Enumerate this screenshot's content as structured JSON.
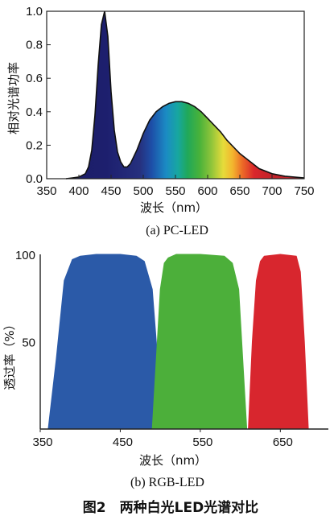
{
  "figure_caption": "图2　两种白光LED光谱对比",
  "colors": {
    "blue_band": "#2b5aa8",
    "green_band": "#4caf3a",
    "red_band": "#d8262e",
    "pc_blue_peak": "#1d1f6e"
  },
  "chart_data": [
    {
      "type": "area",
      "subtitle": "(a) PC-LED",
      "xlabel": "波长（nm）",
      "ylabel": "相对光谱功率",
      "xlim": [
        350,
        750
      ],
      "ylim": [
        0,
        1.0
      ],
      "x_ticks": [
        "350",
        "400",
        "450",
        "500",
        "550",
        "600",
        "650",
        "700",
        "750"
      ],
      "y_ticks": [
        "0.0",
        "0.2",
        "0.4",
        "0.6",
        "0.8",
        "1.0"
      ],
      "fill": "visible-spectrum gradient",
      "series": [
        {
          "x": [
            380,
            390,
            400,
            410,
            415,
            420,
            425,
            430,
            435,
            440,
            445,
            450,
            455,
            460,
            465,
            470,
            475,
            480,
            490,
            500,
            510,
            520,
            530,
            540,
            550,
            560,
            570,
            580,
            590,
            600,
            610,
            620,
            630,
            640,
            650,
            660,
            670,
            680,
            700,
            720,
            750
          ],
          "values": [
            0.0,
            0.005,
            0.01,
            0.03,
            0.07,
            0.17,
            0.38,
            0.68,
            0.92,
            1.0,
            0.85,
            0.52,
            0.29,
            0.16,
            0.1,
            0.07,
            0.07,
            0.09,
            0.17,
            0.27,
            0.35,
            0.4,
            0.43,
            0.45,
            0.46,
            0.46,
            0.45,
            0.43,
            0.4,
            0.36,
            0.32,
            0.28,
            0.23,
            0.19,
            0.15,
            0.12,
            0.09,
            0.06,
            0.03,
            0.015,
            0.005
          ]
        }
      ]
    },
    {
      "type": "area",
      "subtitle": "(b) RGB-LED",
      "xlabel": "波长（nm）",
      "ylabel": "透过率（%）",
      "xlim": [
        350,
        710
      ],
      "ylim": [
        0,
        100
      ],
      "x_ticks": [
        "350",
        "450",
        "550",
        "650"
      ],
      "y_ticks": [
        "50",
        "100"
      ],
      "bands": [
        {
          "color": "blue",
          "x": [
            360,
            370,
            380,
            390,
            400,
            420,
            450,
            470,
            480,
            490,
            495,
            500,
            505
          ],
          "values": [
            0,
            40,
            85,
            97,
            99,
            100,
            100,
            99,
            96,
            80,
            50,
            20,
            0
          ]
        },
        {
          "color": "green",
          "x": [
            490,
            495,
            500,
            505,
            510,
            520,
            550,
            580,
            590,
            598,
            603,
            608
          ],
          "values": [
            0,
            40,
            80,
            95,
            98,
            100,
            100,
            99,
            95,
            80,
            40,
            0
          ]
        },
        {
          "color": "red",
          "x": [
            610,
            615,
            620,
            625,
            630,
            650,
            670,
            675,
            680,
            685
          ],
          "values": [
            0,
            50,
            85,
            96,
            99,
            100,
            99,
            90,
            50,
            0
          ]
        }
      ]
    }
  ]
}
